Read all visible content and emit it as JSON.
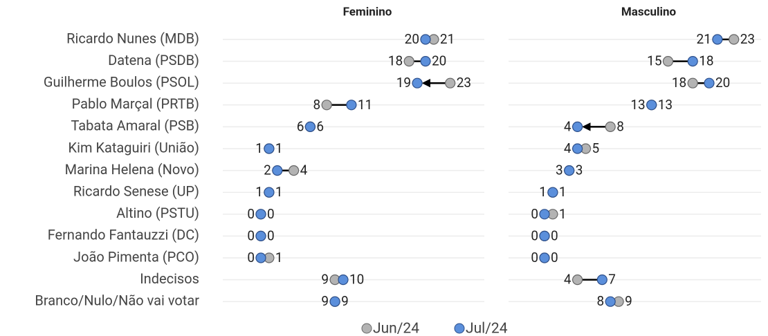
{
  "chart_data": [
    {
      "type": "dumbbell",
      "title": "Feminino",
      "categories": [
        "Ricardo Nunes (MDB)",
        "Datena (PSDB)",
        "Guilherme Boulos (PSOL)",
        "Pablo Marçal (PRTB)",
        "Tabata Amaral (PSB)",
        "Kim Kataguiri (União)",
        "Marina Helena (Novo)",
        "Ricardo Senese (UP)",
        "Altino (PSTU)",
        "Fernando Fantauzzi (DC)",
        "João Pimenta (PCO)",
        "Indecisos",
        "Branco/Nulo/Não vai votar"
      ],
      "series": [
        {
          "name": "Jun/24",
          "color": "#b3b3b3",
          "values": [
            21,
            18,
            23,
            8,
            6,
            1,
            4,
            1,
            0,
            0,
            1,
            9,
            9
          ]
        },
        {
          "name": "Jul/24",
          "color": "#5b8fdb",
          "values": [
            20,
            20,
            19,
            11,
            6,
            1,
            2,
            1,
            0,
            0,
            0,
            10,
            9
          ]
        }
      ]
    },
    {
      "type": "dumbbell",
      "title": "Masculino",
      "series": [
        {
          "name": "Jun/24",
          "color": "#b3b3b3",
          "values": [
            23,
            15,
            18,
            13,
            8,
            5,
            3,
            1,
            1,
            0,
            0,
            4,
            9
          ]
        },
        {
          "name": "Jul/24",
          "color": "#5b8fdb",
          "values": [
            21,
            18,
            20,
            13,
            4,
            4,
            3,
            1,
            0,
            0,
            0,
            7,
            8
          ]
        }
      ]
    }
  ]
}
